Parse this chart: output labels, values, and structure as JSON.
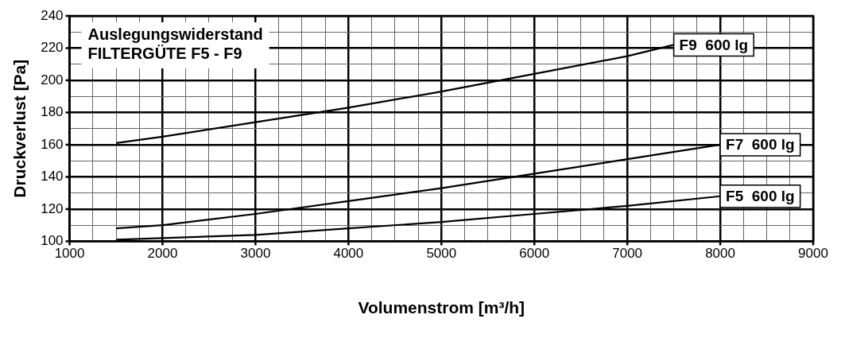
{
  "chart_data": {
    "type": "line",
    "xlabel": "Volumenstrom [m³/h]",
    "ylabel": "Druckverlust [Pa]",
    "annotations": [
      "Auslegungswiderstand",
      "FILTERGÜTE F5 - F9"
    ],
    "series": [
      {
        "name": "F9  600 lg",
        "color": "#000000",
        "x": [
          1500,
          2000,
          3000,
          4000,
          5000,
          6000,
          7000,
          7500
        ],
        "values": [
          161,
          165,
          174,
          183,
          193,
          204,
          215,
          222
        ]
      },
      {
        "name": "F7  600 lg",
        "color": "#000000",
        "x": [
          1500,
          2000,
          3000,
          4000,
          5000,
          6000,
          7000,
          8000
        ],
        "values": [
          108,
          110,
          117,
          125,
          133,
          142,
          151,
          160
        ]
      },
      {
        "name": "F5  600 lg",
        "color": "#000000",
        "x": [
          1500,
          2000,
          3000,
          4000,
          5000,
          6000,
          7000,
          8000
        ],
        "values": [
          101,
          102,
          104,
          108,
          112,
          117,
          122,
          128
        ]
      }
    ],
    "xlim": [
      1000,
      9000
    ],
    "xticks": [
      1000,
      {
        "value": 1250,
        "label": null
      },
      {
        "value": 1500,
        "label": null
      },
      {
        "value": 1750,
        "label": null
      },
      2000,
      {
        "value": 2250,
        "label": null
      },
      {
        "value": 2500,
        "label": null
      },
      {
        "value": 2750,
        "label": null
      },
      3000,
      {
        "value": 3250,
        "label": null
      },
      {
        "value": 3500,
        "label": null
      },
      {
        "value": 3750,
        "label": null
      },
      4000,
      {
        "value": 4250,
        "label": null
      },
      {
        "value": 4500,
        "label": null
      },
      {
        "value": 4750,
        "label": null
      },
      5000,
      {
        "value": 5250,
        "label": null
      },
      {
        "value": 5500,
        "label": null
      },
      {
        "value": 5750,
        "label": null
      },
      6000,
      {
        "value": 6250,
        "label": null
      },
      {
        "value": 6500,
        "label": null
      },
      {
        "value": 6750,
        "label": null
      },
      7000,
      {
        "value": 7250,
        "label": null
      },
      {
        "value": 7500,
        "label": null
      },
      {
        "value": 7750,
        "label": null
      },
      8000,
      {
        "value": 8250,
        "label": null
      },
      {
        "value": 8500,
        "label": null
      },
      {
        "value": 8750,
        "label": null
      },
      9000
    ],
    "ylim": [
      100,
      240
    ],
    "yticks": [
      100,
      {
        "value": 110,
        "label": null
      },
      120,
      {
        "value": 130,
        "label": null
      },
      140,
      {
        "value": 150,
        "label": null
      },
      160,
      {
        "value": 170,
        "label": null
      },
      180,
      {
        "value": 190,
        "label": null
      },
      200,
      {
        "value": 210,
        "label": null
      },
      220,
      {
        "value": 230,
        "label": null
      },
      240
    ],
    "grid": true,
    "legend": false,
    "marker": "none",
    "line_style": "solid"
  }
}
